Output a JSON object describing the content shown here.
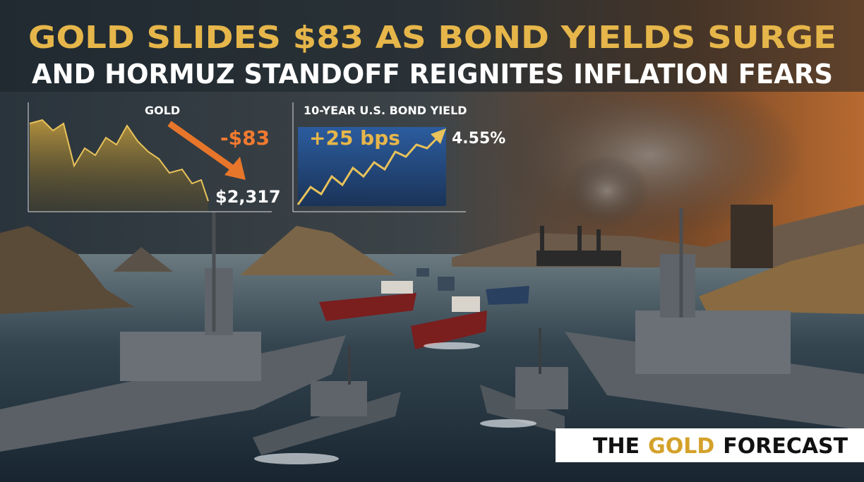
{
  "headline": {
    "line1": "GOLD SLIDES $83 AS BOND YIELDS SURGE",
    "line2": "AND HORMUZ STANDOFF REIGNITES INFLATION FEARS"
  },
  "panels": [
    {
      "label": "GOLD",
      "change": "-$83",
      "price": "$2,317"
    },
    {
      "label": "10-YEAR U.S. BOND YIELD",
      "change": "+25 bps",
      "value": "4.55%"
    }
  ],
  "brand": {
    "part1": "THE",
    "highlight": "GOLD",
    "part2": "FORECAST"
  }
}
